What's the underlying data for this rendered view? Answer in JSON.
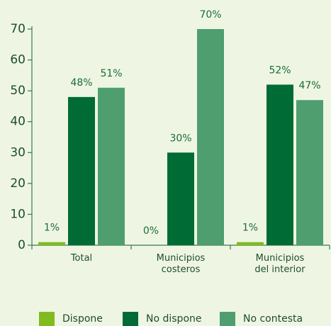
{
  "chart_data": {
    "type": "bar",
    "categories": [
      "Total",
      "Municipios\ncosteros",
      "Municipios\ndel interior"
    ],
    "series": [
      {
        "name": "Dispone",
        "color": "#80bc1f",
        "values": [
          1,
          0,
          1
        ],
        "value_labels": [
          "1%",
          "0%",
          "1%"
        ]
      },
      {
        "name": "No dispone",
        "color": "#006b35",
        "values": [
          48,
          30,
          52
        ],
        "value_labels": [
          "48%",
          "30%",
          "52%"
        ]
      },
      {
        "name": "No contesta",
        "color": "#4f9e70",
        "values": [
          51,
          70,
          47
        ],
        "value_labels": [
          "51%",
          "70%",
          "47%"
        ]
      }
    ],
    "ylim": [
      0,
      70
    ],
    "yticks": [
      0,
      10,
      20,
      30,
      40,
      50,
      60,
      70
    ],
    "legend": "bottom"
  }
}
